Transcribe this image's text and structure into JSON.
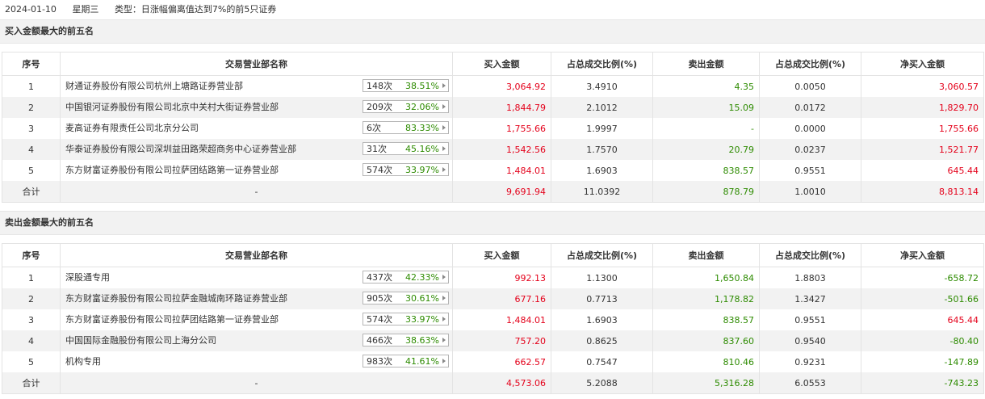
{
  "header": {
    "date": "2024-01-10",
    "weekday": "星期三",
    "type": "类型：日涨幅偏离值达到7%的前5只证券"
  },
  "columns": [
    "序号",
    "交易营业部名称",
    "买入金额",
    "占总成交比例(%)",
    "卖出金额",
    "占总成交比例(%)",
    "净买入金额"
  ],
  "buy_section": {
    "title": "买入金额最大的前五名",
    "rows": [
      {
        "idx": "1",
        "name": "财通证券股份有限公司杭州上塘路证券营业部",
        "count": "148次",
        "pct": "38.51%",
        "buy": "3,064.92",
        "buy_ratio": "3.4910",
        "sell": "4.35",
        "sell_ratio": "0.0050",
        "net": "3,060.57",
        "net_color": "red"
      },
      {
        "idx": "2",
        "name": "中国银河证券股份有限公司北京中关村大街证券营业部",
        "count": "209次",
        "pct": "32.06%",
        "buy": "1,844.79",
        "buy_ratio": "2.1012",
        "sell": "15.09",
        "sell_ratio": "0.0172",
        "net": "1,829.70",
        "net_color": "red"
      },
      {
        "idx": "3",
        "name": "麦高证券有限责任公司北京分公司",
        "count": "6次",
        "pct": "83.33%",
        "buy": "1,755.66",
        "buy_ratio": "1.9997",
        "sell": "-",
        "sell_ratio": "0.0000",
        "net": "1,755.66",
        "net_color": "red"
      },
      {
        "idx": "4",
        "name": "华泰证券股份有限公司深圳益田路荣超商务中心证券营业部",
        "count": "31次",
        "pct": "45.16%",
        "buy": "1,542.56",
        "buy_ratio": "1.7570",
        "sell": "20.79",
        "sell_ratio": "0.0237",
        "net": "1,521.77",
        "net_color": "red"
      },
      {
        "idx": "5",
        "name": "东方财富证券股份有限公司拉萨团结路第一证券营业部",
        "count": "574次",
        "pct": "33.97%",
        "buy": "1,484.01",
        "buy_ratio": "1.6903",
        "sell": "838.57",
        "sell_ratio": "0.9551",
        "net": "645.44",
        "net_color": "red"
      }
    ],
    "total": {
      "label": "合计",
      "name": "-",
      "buy": "9,691.94",
      "buy_ratio": "11.0392",
      "sell": "878.79",
      "sell_ratio": "1.0010",
      "net": "8,813.14",
      "net_color": "red"
    }
  },
  "sell_section": {
    "title": "卖出金额最大的前五名",
    "rows": [
      {
        "idx": "1",
        "name": "深股通专用",
        "count": "437次",
        "pct": "42.33%",
        "buy": "992.13",
        "buy_ratio": "1.1300",
        "sell": "1,650.84",
        "sell_ratio": "1.8803",
        "net": "-658.72",
        "net_color": "green"
      },
      {
        "idx": "2",
        "name": "东方财富证券股份有限公司拉萨金融城南环路证券营业部",
        "count": "905次",
        "pct": "30.61%",
        "buy": "677.16",
        "buy_ratio": "0.7713",
        "sell": "1,178.82",
        "sell_ratio": "1.3427",
        "net": "-501.66",
        "net_color": "green"
      },
      {
        "idx": "3",
        "name": "东方财富证券股份有限公司拉萨团结路第一证券营业部",
        "count": "574次",
        "pct": "33.97%",
        "buy": "1,484.01",
        "buy_ratio": "1.6903",
        "sell": "838.57",
        "sell_ratio": "0.9551",
        "net": "645.44",
        "net_color": "red"
      },
      {
        "idx": "4",
        "name": "中国国际金融股份有限公司上海分公司",
        "count": "466次",
        "pct": "38.63%",
        "buy": "757.20",
        "buy_ratio": "0.8625",
        "sell": "837.60",
        "sell_ratio": "0.9540",
        "net": "-80.40",
        "net_color": "green"
      },
      {
        "idx": "5",
        "name": "机构专用",
        "count": "983次",
        "pct": "41.61%",
        "buy": "662.57",
        "buy_ratio": "0.7547",
        "sell": "810.46",
        "sell_ratio": "0.9231",
        "net": "-147.89",
        "net_color": "green"
      }
    ],
    "total": {
      "label": "合计",
      "name": "-",
      "buy": "4,573.06",
      "buy_ratio": "5.2088",
      "sell": "5,316.28",
      "sell_ratio": "6.0553",
      "net": "-743.23",
      "net_color": "green"
    }
  },
  "colors": {
    "buy": "#e4001a",
    "sell": "#2d8b00",
    "badge_pct": "#2d8b00",
    "section_bg": "#f2f2f2"
  }
}
